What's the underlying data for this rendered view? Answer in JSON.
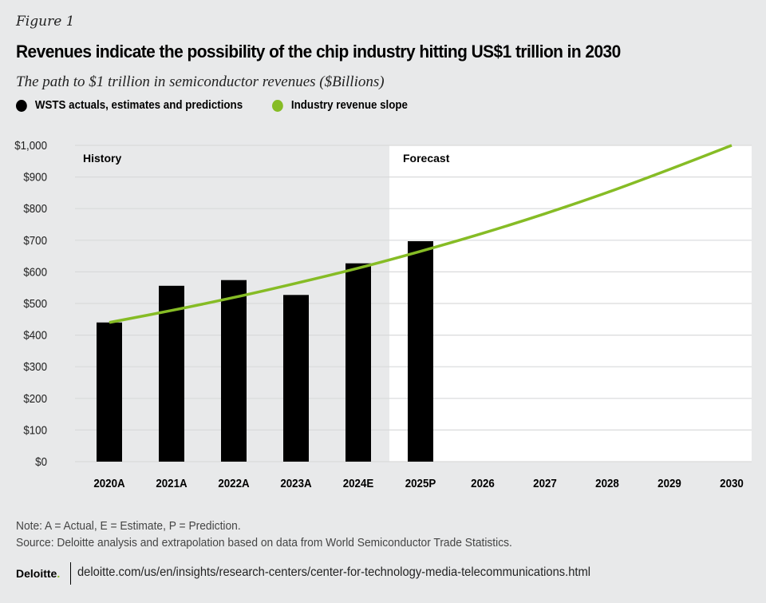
{
  "figure_label": "Figure 1",
  "title": "Revenues indicate the possibility of the chip industry hitting US$1 trillion in 2030",
  "subtitle": "The path to $1 trillion in semiconductor revenues ($Billions)",
  "colors": {
    "bar": "#000000",
    "line": "#86bc25",
    "history_bg": "#e8e9ea",
    "forecast_bg": "#ffffff",
    "grid": "#d9dadb"
  },
  "chart_data": {
    "type": "bar",
    "title": "The path to $1 trillion in semiconductor revenues ($Billions)",
    "categories": [
      "2020A",
      "2021A",
      "2022A",
      "2023A",
      "2024E",
      "2025P",
      "2026",
      "2027",
      "2028",
      "2029",
      "2030"
    ],
    "series": [
      {
        "name": "WSTS actuals, estimates and predictions",
        "type": "bar",
        "values": [
          440,
          556,
          574,
          527,
          627,
          697,
          null,
          null,
          null,
          null,
          null
        ]
      },
      {
        "name": "Industry revenue slope",
        "type": "line",
        "values": [
          440,
          478,
          519,
          564,
          612,
          665,
          722,
          784,
          851,
          924,
          1000
        ]
      }
    ],
    "regions": [
      {
        "label": "History",
        "from": "2020A",
        "to": "2024E"
      },
      {
        "label": "Forecast",
        "from": "2025P",
        "to": "2030"
      }
    ],
    "y_ticks": [
      "$0",
      "$100",
      "$200",
      "$300",
      "$400",
      "$500",
      "$600",
      "$700",
      "$800",
      "$900",
      "$1,000"
    ],
    "ylim": [
      0,
      1000
    ],
    "xlabel": "",
    "ylabel": "",
    "grid": true,
    "legend_position": "top-left"
  },
  "notes": {
    "note": "Note: A = Actual, E = Estimate, P = Prediction.",
    "source": "Source: Deloitte analysis and extrapolation based on data from World Semiconductor Trade Statistics."
  },
  "footer": {
    "logo": "Deloitte",
    "url": "deloitte.com/us/en/insights/research-centers/center-for-technology-media-telecommunications.html"
  }
}
